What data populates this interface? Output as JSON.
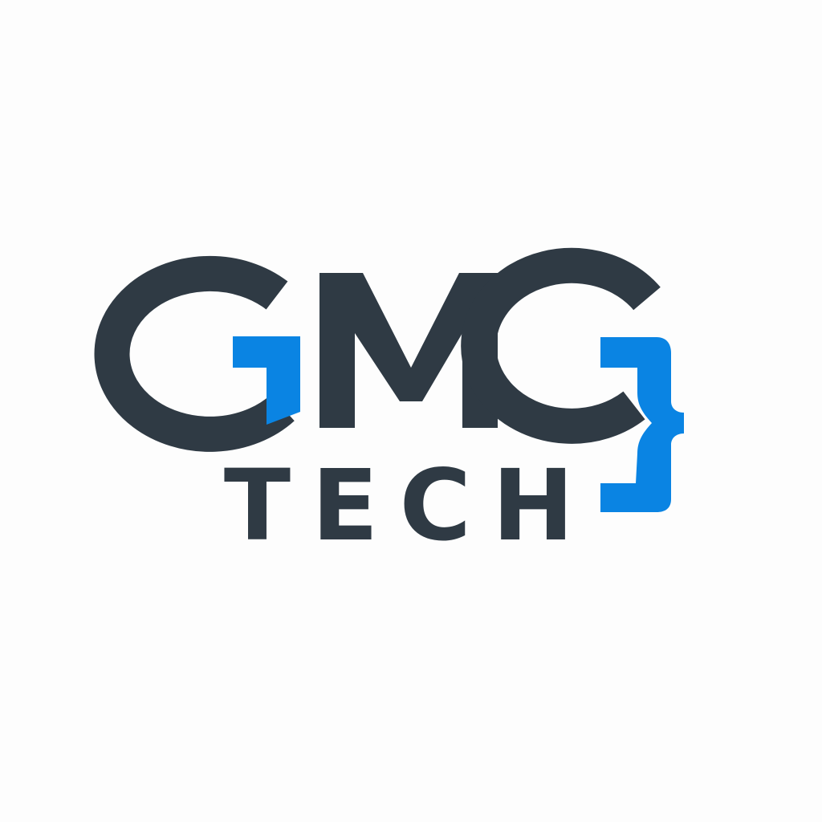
{
  "logo": {
    "wordmark": "GMG",
    "subtitle": "TECH",
    "colors": {
      "dark": "#2f3a44",
      "accent": "#0a84e3",
      "background": "#fdfdfd"
    },
    "icon": "curly-brace-icon"
  }
}
